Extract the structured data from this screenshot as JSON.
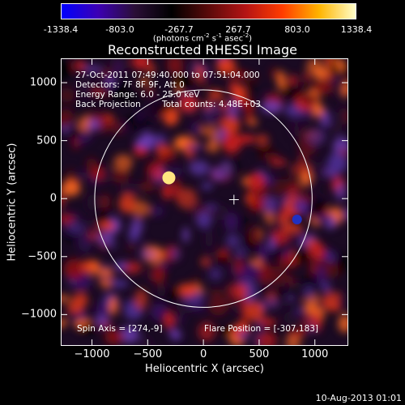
{
  "colorbar": {
    "ticks": [
      "-1338.4",
      "-803.0",
      "-267.7",
      "267.7",
      "803.0",
      "1338.4"
    ],
    "units_prefix": "(photons cm",
    "units_exp1": "-2",
    "units_mid": " s",
    "units_exp2": "-1",
    "units_mid2": " asec",
    "units_exp3": "-2",
    "units_suffix": ")",
    "colors": [
      "#0000ff",
      "#3c00b4",
      "#2a0f36",
      "#000000",
      "#5a0a0a",
      "#b41414",
      "#ff3c00",
      "#ffb400",
      "#ffffcc"
    ]
  },
  "title": "Reconstructed RHESSI Image",
  "info": {
    "line1": "27-Oct-2011 07:49:40.000 to 07:51:04.000",
    "line2": "Detectors: 7F 8F 9F, Att 0",
    "line3": "Energy Range: 6.0 - 25.0 keV",
    "line4a": "Back Projection",
    "line4b": "Total counts: 4.48E+03",
    "spin_axis": "Spin Axis = [274,-9]",
    "flare_position": "Flare Position = [-307,183]"
  },
  "footer": "10-Aug-2013 01:01",
  "chart_data": {
    "type": "heatmap",
    "title": "Reconstructed RHESSI Image",
    "xlabel": "Heliocentric X (arcsec)",
    "ylabel": "Heliocentric Y (arcsec)",
    "xlim": [
      -1280,
      1300
    ],
    "ylim": [
      -1270,
      1210
    ],
    "xticks": [
      -1000,
      -500,
      0,
      500,
      1000
    ],
    "yticks": [
      1000,
      500,
      0,
      -500,
      -1000
    ],
    "xtick_labels": [
      "−1000",
      "−500",
      "0",
      "500",
      "1000"
    ],
    "ytick_labels": [
      "1000",
      "500",
      "0",
      "−500",
      "−1000"
    ],
    "colorbar_range": [
      -1338.4,
      1338.4
    ],
    "solar_limb": {
      "center": [
        0,
        0
      ],
      "radius": 975
    },
    "spin_axis": [
      274,
      -9
    ],
    "flare_position": [
      -307,
      183
    ],
    "bright_source": [
      -310,
      180
    ]
  }
}
